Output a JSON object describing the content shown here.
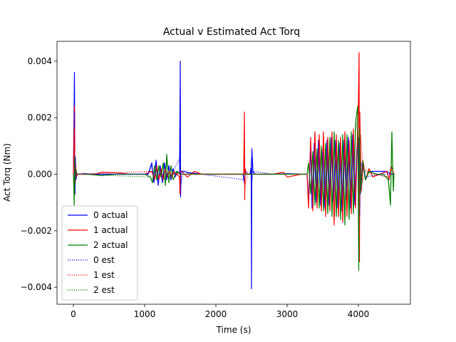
{
  "chart_data": {
    "type": "line",
    "title": "Actual v Estimated Act Torq",
    "xlabel": "Time (s)",
    "ylabel": "Act Torq (Nm)",
    "xlim": [
      -230,
      4730
    ],
    "ylim": [
      -0.0046,
      0.0047
    ],
    "xticks": [
      0,
      1000,
      2000,
      3000,
      4000
    ],
    "yticks": [
      -0.004,
      -0.002,
      0.0,
      0.002,
      0.004
    ],
    "ytick_labels": [
      "−0.004",
      "−0.002",
      "0.000",
      "0.002",
      "0.004"
    ],
    "grid": false,
    "legend_position": "lower-left",
    "series": [
      {
        "name": "0 actual",
        "color": "#0000ff",
        "style": "solid",
        "x": [
          0,
          15,
          22,
          28,
          35,
          50,
          80,
          150,
          300,
          500,
          700,
          900,
          1050,
          1100,
          1130,
          1160,
          1190,
          1220,
          1250,
          1280,
          1310,
          1340,
          1370,
          1400,
          1430,
          1460,
          1490,
          1500,
          1505,
          1510,
          1530,
          1560,
          1600,
          1700,
          1800,
          2000,
          2200,
          2380,
          2400,
          2405,
          2410,
          2430,
          2450,
          2480,
          2495,
          2500,
          2505,
          2520,
          2550,
          2600,
          2800,
          3000,
          3200,
          3280,
          3300,
          3330,
          3350,
          3380,
          3410,
          3440,
          3470,
          3500,
          3530,
          3560,
          3590,
          3620,
          3650,
          3680,
          3710,
          3740,
          3770,
          3800,
          3830,
          3860,
          3890,
          3920,
          3950,
          3980,
          4000,
          4010,
          4020,
          4040,
          4070,
          4100,
          4150,
          4200,
          4300,
          4400,
          4450,
          4480,
          4500
        ],
        "y": [
          0.0,
          0.0036,
          -0.0007,
          0.0006,
          -0.0002,
          0.0,
          0.0,
          2e-05,
          0.0,
          0.0,
          0.0,
          0.0,
          0.0,
          0.0004,
          -0.0003,
          0.0005,
          -0.0004,
          0.0003,
          -0.0003,
          0.0004,
          -0.0002,
          0.0003,
          -0.0002,
          0.0002,
          -0.0001,
          0.0001,
          0.0,
          0.004,
          -0.0008,
          0.0001,
          0.0001,
          0.0001,
          5e-05,
          3e-05,
          0.0,
          0.0,
          0.0,
          0.0,
          -0.0003,
          0.0002,
          0.0,
          0.0,
          0.0,
          0.0,
          0.0002,
          -0.00405,
          0.0009,
          0.0001,
          0.0,
          0.0,
          0.0,
          2e-05,
          0.0,
          0.0,
          -0.001,
          0.001,
          -0.0012,
          0.0011,
          -0.001,
          0.0012,
          -0.0011,
          0.0009,
          -0.0012,
          0.0012,
          -0.0011,
          0.0013,
          -0.001,
          0.0012,
          -0.0012,
          0.0011,
          -0.0013,
          0.0012,
          -0.0009,
          0.0013,
          -0.0012,
          0.0014,
          -0.0011,
          0.001,
          0.0013,
          -0.001,
          0.0008,
          -0.0005,
          0.0004,
          -0.0002,
          0.0001,
          0.0001,
          0.0001,
          0.0001,
          0.0,
          0.0,
          0.0
        ]
      },
      {
        "name": "1 actual",
        "color": "#ff0000",
        "style": "solid",
        "x": [
          0,
          15,
          22,
          30,
          40,
          60,
          100,
          300,
          400,
          600,
          800,
          1000,
          1100,
          1140,
          1170,
          1200,
          1230,
          1260,
          1290,
          1320,
          1350,
          1380,
          1410,
          1450,
          1490,
          1495,
          1500,
          1520,
          1600,
          1700,
          1800,
          2000,
          2200,
          2390,
          2400,
          2405,
          2410,
          2430,
          2500,
          2600,
          2800,
          2950,
          3000,
          3200,
          3280,
          3300,
          3330,
          3360,
          3390,
          3420,
          3450,
          3480,
          3510,
          3540,
          3570,
          3600,
          3630,
          3660,
          3690,
          3720,
          3750,
          3780,
          3810,
          3840,
          3870,
          3900,
          3930,
          3960,
          3990,
          4000,
          4010,
          4015,
          4020,
          4040,
          4070,
          4100,
          4150,
          4200,
          4300,
          4400,
          4430,
          4460,
          4500
        ],
        "y": [
          0.0,
          0.0024,
          -0.0004,
          0.0004,
          -0.0001,
          0.0,
          0.0,
          0.0,
          7e-05,
          5e-05,
          0.0,
          0.0,
          0.0001,
          -0.0002,
          0.0003,
          -0.0002,
          0.0002,
          -0.0002,
          0.0002,
          -0.0001,
          0.0001,
          -0.0001,
          0.0001,
          0.0,
          -0.0001,
          -0.0007,
          0.0001,
          0.0001,
          -0.0001,
          0.0001,
          0.0,
          0.0,
          0.0,
          0.0,
          0.0022,
          -0.0009,
          0.0002,
          0.0,
          0.0,
          0.0,
          0.0,
          7e-05,
          -0.0001,
          0.0,
          0.0,
          -0.0012,
          0.0013,
          -0.0013,
          0.0015,
          -0.0012,
          0.0014,
          -0.0013,
          0.0015,
          -0.0015,
          0.0013,
          -0.0013,
          0.0015,
          -0.0018,
          0.0014,
          -0.0015,
          0.0013,
          -0.0017,
          0.0015,
          -0.0015,
          0.0012,
          -0.0014,
          0.0016,
          -0.0012,
          0.0018,
          0.0025,
          0.0043,
          -0.0031,
          0.0022,
          -0.0006,
          0.0004,
          -0.0002,
          0.0002,
          -0.0001,
          0.0,
          0.0001,
          -0.0002,
          0.0003,
          0.0
        ]
      },
      {
        "name": "2 actual",
        "color": "#008000",
        "style": "solid",
        "x": [
          0,
          12,
          18,
          25,
          35,
          50,
          80,
          200,
          400,
          600,
          800,
          1000,
          1080,
          1110,
          1140,
          1170,
          1200,
          1230,
          1260,
          1290,
          1310,
          1340,
          1370,
          1400,
          1450,
          1500,
          1600,
          1800,
          2000,
          2200,
          2400,
          2600,
          2800,
          3000,
          3200,
          3280,
          3300,
          3330,
          3360,
          3390,
          3420,
          3450,
          3480,
          3510,
          3540,
          3570,
          3600,
          3630,
          3660,
          3690,
          3720,
          3750,
          3780,
          3810,
          3840,
          3870,
          3900,
          3930,
          3960,
          3990,
          4005,
          4015,
          4030,
          4060,
          4100,
          4150,
          4250,
          4350,
          4420,
          4450,
          4470,
          4490,
          4500
        ],
        "y": [
          0.0,
          -0.0011,
          0.0007,
          -0.0004,
          0.0002,
          0.0,
          0.0,
          0.0,
          -5e-05,
          0.0,
          0.0,
          0.0,
          -0.0001,
          -0.0003,
          0.0003,
          -0.0002,
          0.0003,
          -0.0001,
          0.0004,
          -0.0004,
          0.0007,
          -0.0003,
          0.0003,
          -0.0002,
          0.0001,
          0.0,
          0.0,
          0.0,
          0.0,
          0.0,
          0.0,
          0.0,
          0.0,
          0.0,
          0.0,
          0.0,
          0.0004,
          -0.0007,
          0.0008,
          -0.0011,
          0.0009,
          -0.0012,
          0.001,
          -0.0013,
          0.0011,
          -0.0014,
          0.0013,
          -0.0015,
          0.0015,
          -0.0015,
          0.0012,
          -0.0016,
          0.0014,
          -0.0018,
          0.0014,
          -0.0016,
          0.0015,
          -0.0014,
          0.0018,
          0.0024,
          -0.0034,
          0.0016,
          -0.0007,
          0.0005,
          -0.0002,
          0.0001,
          0.0,
          0.0,
          -0.0002,
          -0.0011,
          0.0015,
          -0.0006,
          0.0
        ]
      },
      {
        "name": "0 est",
        "color": "#0000ff",
        "style": "dotted",
        "x": [
          0,
          15,
          22,
          28,
          35,
          50,
          80,
          300,
          700,
          1050,
          1100,
          1130,
          1160,
          1190,
          1220,
          1250,
          1280,
          1310,
          1340,
          1400,
          1500,
          1510,
          1530,
          1800,
          2400,
          2410,
          2480,
          2500,
          2505,
          2520,
          2800,
          3280,
          3300,
          3330,
          3350,
          3380,
          3410,
          3440,
          3470,
          3500,
          3530,
          3560,
          3590,
          3620,
          3650,
          3680,
          3710,
          3740,
          3770,
          3800,
          3830,
          3860,
          3890,
          3920,
          3950,
          3980,
          4000,
          4020,
          4040,
          4100,
          4300,
          4500
        ],
        "y": [
          0.0,
          0.0022,
          -0.0004,
          0.0004,
          -0.0001,
          0.0,
          0.0,
          0.0,
          0.0,
          0.0,
          0.0003,
          -0.0002,
          0.0004,
          -0.0003,
          0.0002,
          -0.0002,
          0.0003,
          -0.0001,
          0.0002,
          0.0001,
          0.0006,
          -0.0004,
          0.0001,
          0.0,
          -0.0002,
          0.0001,
          0.0,
          0.0006,
          -0.0003,
          0.0001,
          0.0,
          0.0,
          -0.0009,
          0.0009,
          -0.0011,
          0.001,
          -0.0009,
          0.0011,
          -0.001,
          0.0008,
          -0.0011,
          0.0011,
          -0.001,
          0.0012,
          -0.0009,
          0.0011,
          -0.0011,
          0.001,
          -0.0012,
          0.0011,
          -0.0008,
          0.0012,
          -0.0011,
          0.0013,
          -0.001,
          0.0009,
          0.0011,
          -0.0015,
          0.0004,
          -0.0001,
          0.0,
          0.0
        ]
      },
      {
        "name": "1 est",
        "color": "#ff0000",
        "style": "dotted",
        "x": [
          0,
          15,
          22,
          30,
          50,
          100,
          1100,
          1140,
          1170,
          1200,
          1230,
          1260,
          1300,
          1400,
          1500,
          2390,
          2400,
          2410,
          2450,
          3280,
          3300,
          3330,
          3360,
          3390,
          3420,
          3450,
          3480,
          3510,
          3540,
          3570,
          3600,
          3630,
          3660,
          3690,
          3720,
          3750,
          3780,
          3810,
          3840,
          3870,
          3900,
          3930,
          3960,
          3990,
          4005,
          4015,
          4030,
          4070,
          4200,
          4430,
          4460,
          4500
        ],
        "y": [
          0.0,
          0.0016,
          -0.0003,
          0.0002,
          0.0,
          0.0,
          0.0001,
          -0.0001,
          0.0002,
          -0.0001,
          0.0001,
          -0.0001,
          0.0001,
          0.0,
          0.0,
          0.0,
          0.0012,
          -0.0004,
          0.0,
          0.0,
          -0.0011,
          0.0012,
          -0.0012,
          0.0013,
          -0.0011,
          0.0012,
          -0.0012,
          0.0013,
          -0.0013,
          0.0012,
          -0.0012,
          0.0013,
          -0.0015,
          0.0012,
          -0.0013,
          0.0011,
          -0.0014,
          0.0013,
          -0.0013,
          0.0011,
          -0.0012,
          0.0014,
          -0.0011,
          0.0015,
          0.0026,
          -0.0022,
          0.0014,
          0.0002,
          0.0,
          -0.0001,
          0.0002,
          0.0
        ]
      },
      {
        "name": "2 est",
        "color": "#008000",
        "style": "dotted",
        "x": [
          0,
          12,
          18,
          25,
          35,
          50,
          1080,
          1110,
          1140,
          1170,
          1200,
          1230,
          1260,
          1290,
          1310,
          1340,
          1400,
          1500,
          3280,
          3300,
          3330,
          3360,
          3390,
          3420,
          3450,
          3480,
          3510,
          3540,
          3570,
          3600,
          3630,
          3660,
          3690,
          3720,
          3750,
          3780,
          3810,
          3840,
          3870,
          3900,
          3930,
          3960,
          3990,
          4005,
          4015,
          4030,
          4100,
          4420,
          4450,
          4470,
          4490,
          4500
        ],
        "y": [
          0.0,
          -0.0006,
          0.0005,
          -0.0002,
          0.0001,
          0.0,
          -0.0001,
          -0.0002,
          0.0002,
          -0.0002,
          0.0002,
          -0.0001,
          0.0003,
          -0.0003,
          0.0005,
          -0.0002,
          0.0001,
          0.0,
          0.0,
          0.0003,
          -0.0006,
          0.0007,
          -0.001,
          0.0008,
          -0.0011,
          0.0009,
          -0.0012,
          0.001,
          -0.0012,
          0.0012,
          -0.0013,
          0.0013,
          -0.0013,
          0.0011,
          -0.0014,
          0.0012,
          -0.0015,
          0.0012,
          -0.0014,
          0.0013,
          -0.0012,
          0.0015,
          0.002,
          -0.0028,
          0.0013,
          -0.0005,
          0.0001,
          -0.0001,
          -0.0009,
          0.0013,
          -0.0005,
          0.0
        ]
      }
    ]
  }
}
